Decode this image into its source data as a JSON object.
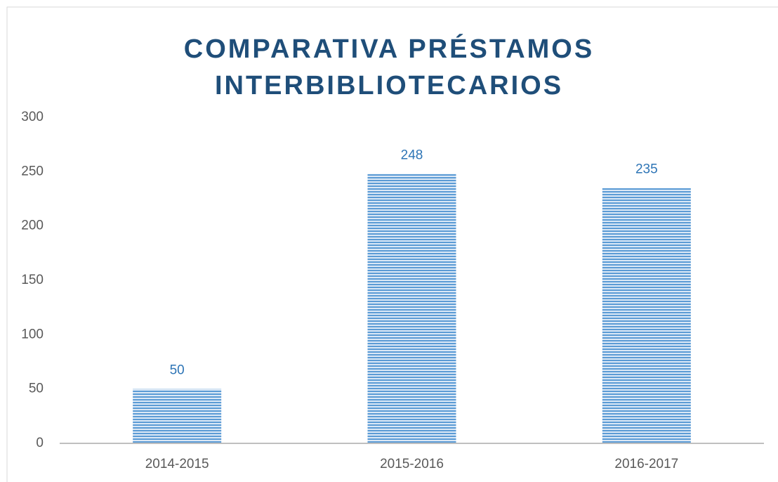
{
  "chart_data": {
    "type": "bar",
    "title": "COMPARATIVA PRÉSTAMOS INTERBIBLIOTECARIOS",
    "categories": [
      "2014-2015",
      "2015-2016",
      "2016-2017"
    ],
    "values": [
      50,
      248,
      235
    ],
    "color": "#5b9bd5",
    "ylim": [
      0,
      300
    ],
    "yticks": [
      0,
      50,
      100,
      150,
      200,
      250,
      300
    ],
    "grid": false
  }
}
